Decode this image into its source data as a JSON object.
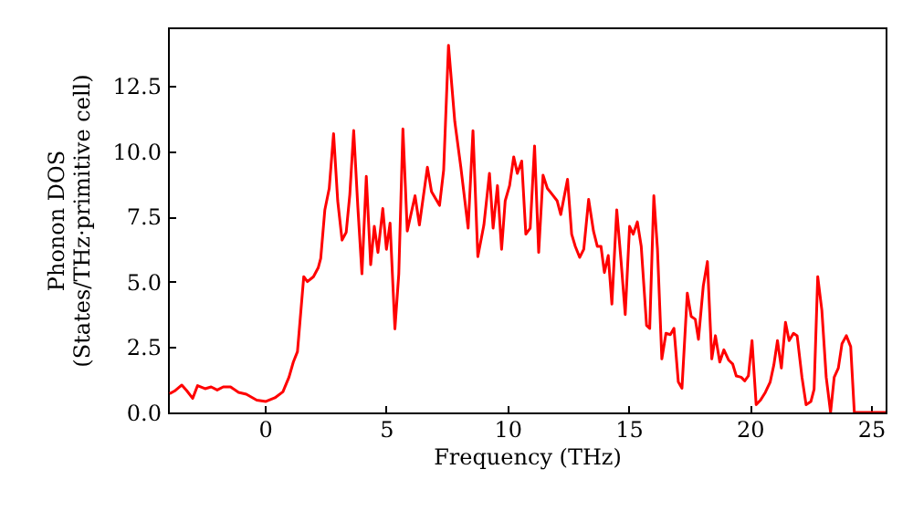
{
  "chart_data": {
    "type": "line",
    "xlabel": "Frequency (THz)",
    "ylabel": "Phonon DOS\n(States/THz·primitive cell)",
    "x": [
      -3.93,
      -3.73,
      -3.43,
      -3.23,
      -2.98,
      -2.78,
      -2.47,
      -2.22,
      -1.97,
      -1.72,
      -1.42,
      -1.09,
      -0.77,
      -0.34,
      0.04,
      0.41,
      0.74,
      0.99,
      1.17,
      1.34,
      1.6,
      1.75,
      2.0,
      2.2,
      2.3,
      2.47,
      2.65,
      2.83,
      3.0,
      3.18,
      3.35,
      3.5,
      3.66,
      3.83,
      4.0,
      4.18,
      4.36,
      4.51,
      4.66,
      4.86,
      5.01,
      5.16,
      5.36,
      5.52,
      5.69,
      5.87,
      6.19,
      6.37,
      6.7,
      6.87,
      7.2,
      7.37,
      7.57,
      7.83,
      8.08,
      8.38,
      8.58,
      8.78,
      9.03,
      9.26,
      9.41,
      9.59,
      9.76,
      9.91,
      10.09,
      10.26,
      10.41,
      10.59,
      10.76,
      10.94,
      11.12,
      11.29,
      11.47,
      11.65,
      11.85,
      12.05,
      12.2,
      12.48,
      12.65,
      12.8,
      12.98,
      13.15,
      13.35,
      13.55,
      13.71,
      13.86,
      14.0,
      14.16,
      14.31,
      14.51,
      14.69,
      14.86,
      15.04,
      15.19,
      15.36,
      15.52,
      15.74,
      15.87,
      16.04,
      16.19,
      16.37,
      16.54,
      16.72,
      16.87,
      17.05,
      17.2,
      17.42,
      17.58,
      17.75,
      17.88,
      18.08,
      18.25,
      18.43,
      18.58,
      18.76,
      18.93,
      19.13,
      19.29,
      19.44,
      19.64,
      19.79,
      19.94,
      20.09,
      20.26,
      20.44,
      20.64,
      20.84,
      20.99,
      21.14,
      21.3,
      21.47,
      21.62,
      21.8,
      21.95,
      22.15,
      22.32,
      22.52,
      22.65,
      22.8,
      22.97,
      23.15,
      23.33,
      23.48,
      23.65,
      23.8,
      23.98,
      24.16,
      24.31,
      25.6
    ],
    "series": [
      {
        "color": "#ff0000",
        "values": [
          0.72,
          0.82,
          1.05,
          0.84,
          0.54,
          1.03,
          0.91,
          0.98,
          0.86,
          0.98,
          0.98,
          0.77,
          0.7,
          0.47,
          0.42,
          0.56,
          0.79,
          1.35,
          1.93,
          2.33,
          5.2,
          5.01,
          5.2,
          5.55,
          5.9,
          7.76,
          8.58,
          10.68,
          8.11,
          6.6,
          6.9,
          8.35,
          10.8,
          7.88,
          5.31,
          9.04,
          5.66,
          7.13,
          6.13,
          7.81,
          6.25,
          7.25,
          3.2,
          5.31,
          10.86,
          6.95,
          8.3,
          7.18,
          9.39,
          8.46,
          7.93,
          9.28,
          14.06,
          11.14,
          9.39,
          7.06,
          10.79,
          5.97,
          7.18,
          9.16,
          7.06,
          8.69,
          6.25,
          8.11,
          8.69,
          9.79,
          9.16,
          9.63,
          6.83,
          7.06,
          10.21,
          6.13,
          9.09,
          8.58,
          8.35,
          8.11,
          7.58,
          8.93,
          6.83,
          6.36,
          5.94,
          6.25,
          8.16,
          6.95,
          6.36,
          6.36,
          5.36,
          6.01,
          4.15,
          7.76,
          5.78,
          3.75,
          7.13,
          6.83,
          7.3,
          6.36,
          3.33,
          3.22,
          8.3,
          6.25,
          2.05,
          3.03,
          2.98,
          3.22,
          1.17,
          0.93,
          4.57,
          3.68,
          3.57,
          2.8,
          4.85,
          5.78,
          2.05,
          2.94,
          1.93,
          2.4,
          2.0,
          1.86,
          1.4,
          1.35,
          1.21,
          1.4,
          2.75,
          0.3,
          0.47,
          0.77,
          1.17,
          1.82,
          2.75,
          1.7,
          3.45,
          2.75,
          3.03,
          2.94,
          1.35,
          0.3,
          0.42,
          0.89,
          5.2,
          3.92,
          1.35,
          0,
          1.35,
          1.7,
          2.63,
          2.94,
          2.52,
          0,
          0
        ]
      }
    ],
    "xlim": [
      -4,
      25.6
    ],
    "ylim": [
      0,
      14.75
    ],
    "xticks": [
      0,
      5,
      10,
      15,
      20,
      25
    ],
    "yticks": [
      {
        "value": 0,
        "label": "0.0"
      },
      2.5,
      {
        "value": 5,
        "label": "5.0"
      },
      7.5,
      {
        "value": 10,
        "label": "10.0"
      },
      12.5
    ],
    "grid": false,
    "marker": "none",
    "line_style": "solid"
  }
}
